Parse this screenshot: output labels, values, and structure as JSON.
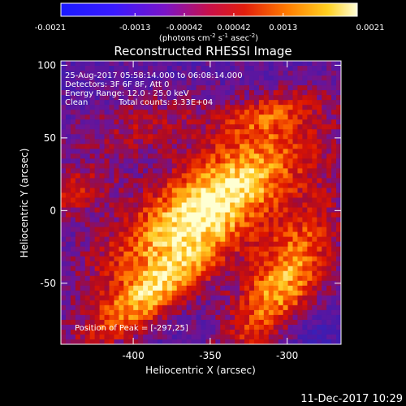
{
  "colorbar": {
    "tick_labels": [
      "-0.0021",
      "-0.0013",
      "-0.00042",
      "0.00042",
      "0.0013",
      "0.0021"
    ],
    "units_text": "(photons cm",
    "units_exp1": "-2",
    "units_mid": " s",
    "units_exp2": "-1",
    "units_tail": " asec",
    "units_exp3": "-2",
    "units_close": ")"
  },
  "title": "Reconstructed RHESSI Image",
  "annotations": {
    "line1": "25-Aug-2017 05:58:14.000 to 06:08:14.000",
    "line2": "Detectors: 3F 6F 8F, Att 0",
    "line3": "Energy Range: 12.0 - 25.0 keV",
    "line4_left": "Clean",
    "line4_right": "Total counts: 3.33E+04",
    "peak": "Position of Peak = [-297,25]"
  },
  "footer": {
    "timestamp": "11-Dec-2017 10:29"
  },
  "chart_data": {
    "type": "heatmap",
    "title": "Reconstructed RHESSI Image",
    "xlabel": "Heliocentric X (arcsec)",
    "ylabel": "Heliocentric Y (arcsec)",
    "xlim": [
      -447,
      -265
    ],
    "ylim": [
      -92,
      103
    ],
    "x_ticks": [
      -400,
      -350,
      -300
    ],
    "y_ticks": [
      100,
      50,
      0,
      -50
    ],
    "colorbar_range": [
      -0.0021,
      0.0021
    ],
    "colormap": "red-temperature (blue-purple-red-orange-yellow-white)",
    "peak_position": [
      -297,
      25
    ]
  }
}
